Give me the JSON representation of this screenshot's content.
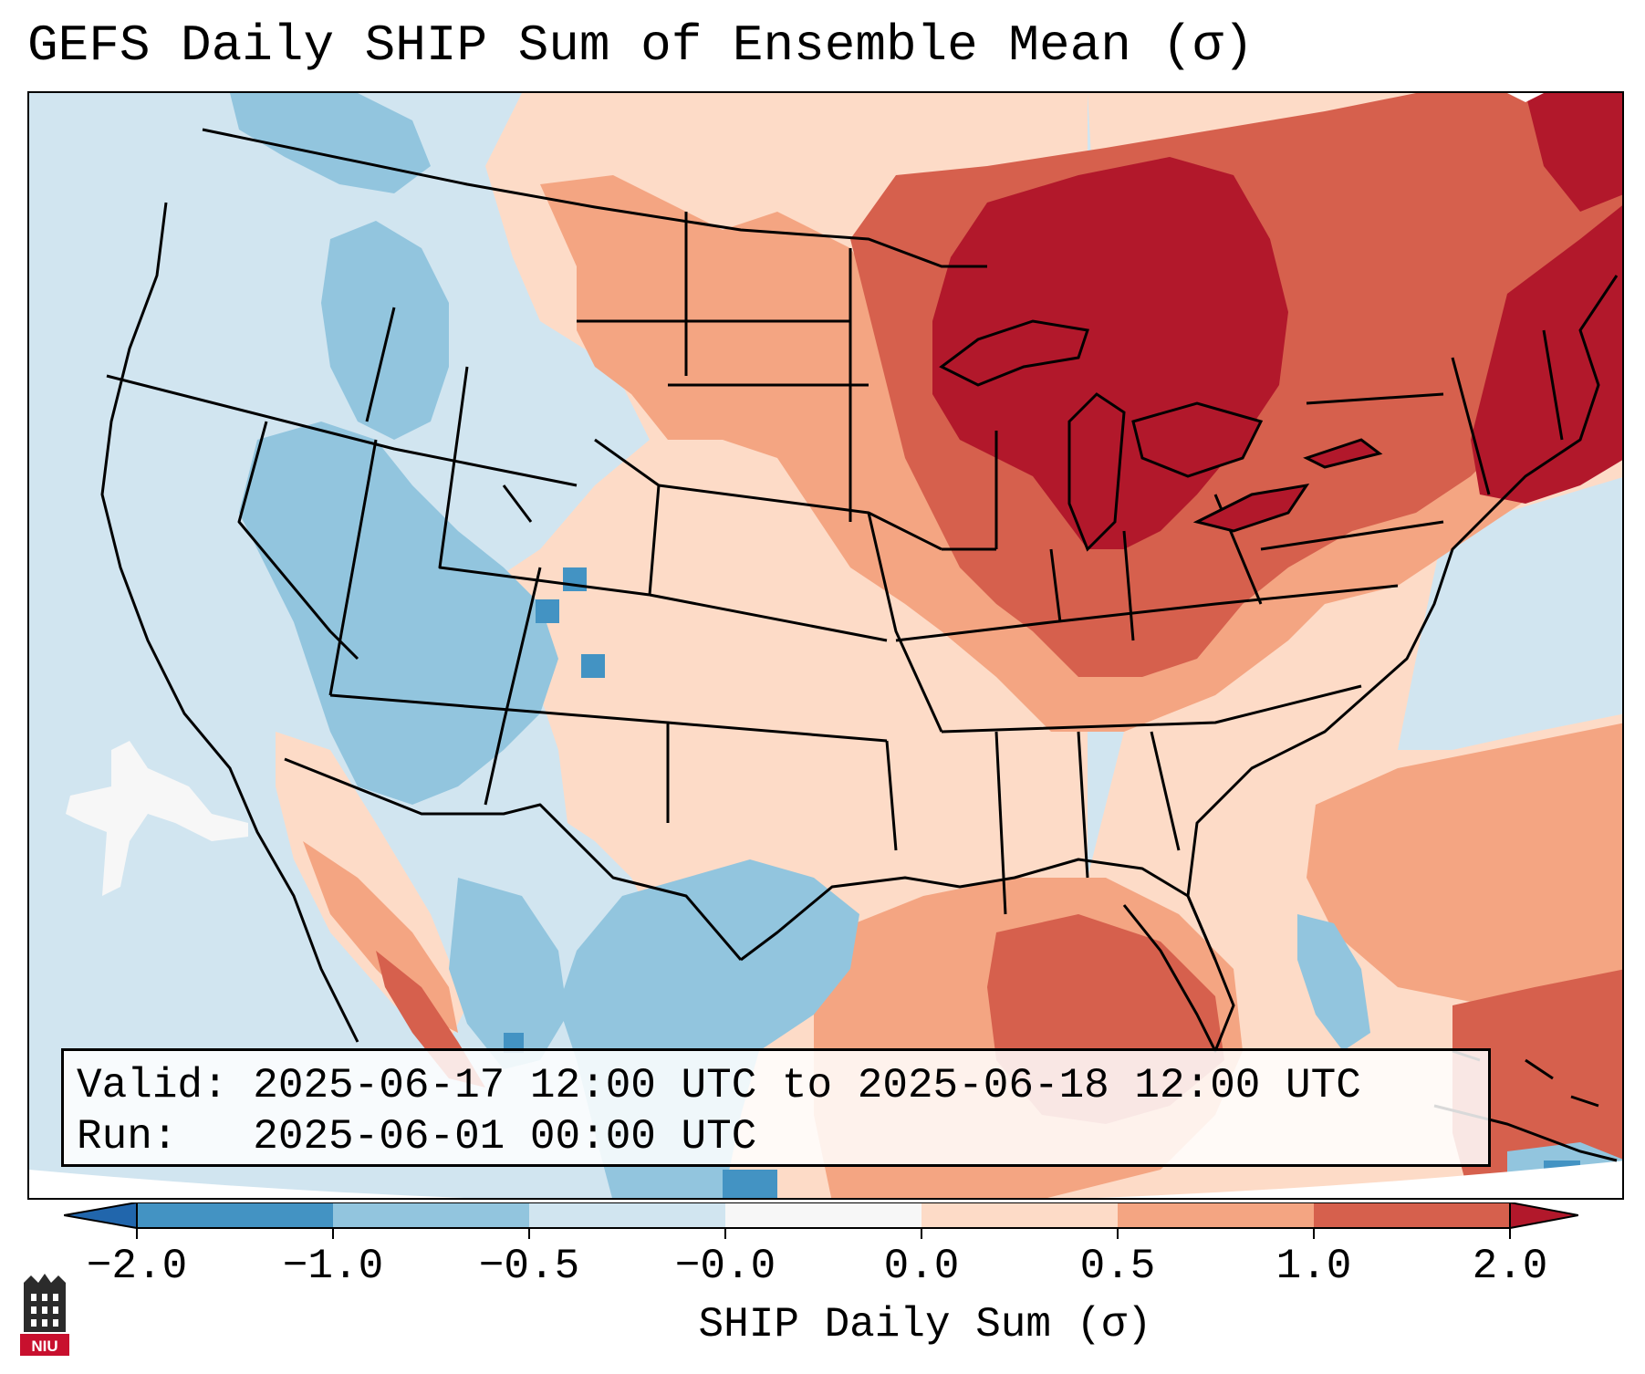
{
  "title": "GEFS Daily SHIP Sum of Ensemble Mean (σ)",
  "info": {
    "valid_line": "Valid: 2025-06-17 12:00 UTC to 2025-06-18 12:00 UTC",
    "run_line": "Run:   2025-06-01 00:00 UTC"
  },
  "colorbar": {
    "label": "SHIP Daily Sum (σ)",
    "tick_labels": [
      "−2.0",
      "−1.0",
      "−0.5",
      "−0.0",
      "0.0",
      "0.5",
      "1.0",
      "2.0"
    ],
    "bin_colors": [
      "#4393c3",
      "#92c5de",
      "#d1e5f0",
      "#f7f7f7",
      "#fddbc7",
      "#f4a582",
      "#d6604d"
    ],
    "under_color": "#2166ac",
    "over_color": "#b2182b"
  },
  "logo": {
    "text": "NIU"
  },
  "map": {
    "region": "Contiguous United States",
    "ocean_color": "#d1e5f0",
    "anomaly_levels": {
      "strong_positive": "#b2182b",
      "positive": "#d6604d",
      "moderate_positive": "#f4a582",
      "weak_positive": "#fddbc7",
      "weak_negative": "#d1e5f0",
      "negative": "#92c5de",
      "strong_negative": "#4393c3"
    }
  }
}
